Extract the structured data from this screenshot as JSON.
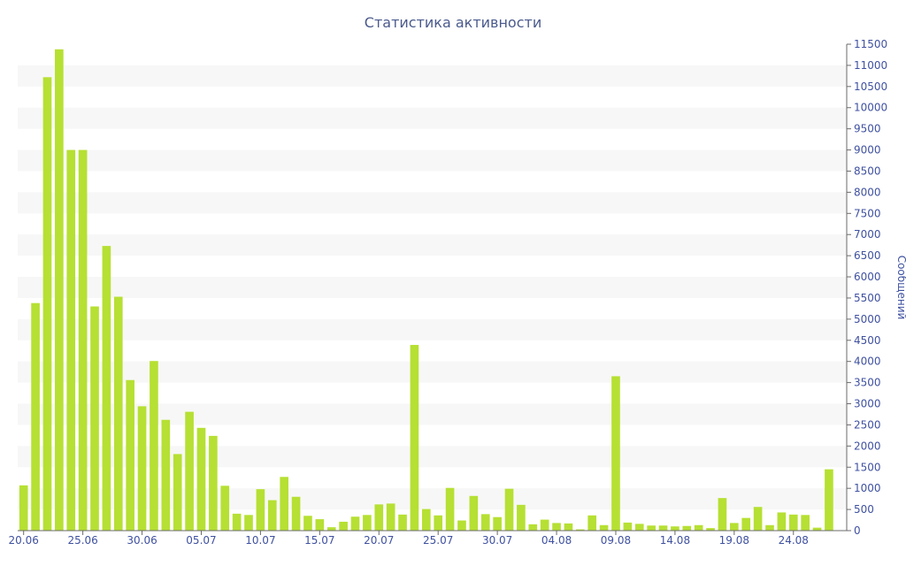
{
  "chart_data": {
    "type": "bar",
    "title": "Статистика активности",
    "ylabel": "Сообщений",
    "xlabel": "",
    "ylim": [
      0,
      11500
    ],
    "yticks": [
      0,
      500,
      1000,
      1500,
      2000,
      2500,
      3000,
      3500,
      4000,
      4500,
      5000,
      5500,
      6000,
      6500,
      7000,
      7500,
      8000,
      8500,
      9000,
      9500,
      10000,
      10500,
      11000,
      11500
    ],
    "xtick_labels": [
      "20.06",
      "25.06",
      "30.06",
      "05.07",
      "10.07",
      "15.07",
      "20.07",
      "25.07",
      "30.07",
      "04.08",
      "09.08",
      "14.08",
      "19.08",
      "24.08"
    ],
    "y_axis_position": "right",
    "grid": "alternating horizontal bands",
    "colors": {
      "bar": "#b6e033",
      "text": "#3f51a0",
      "title": "#4a5a8c",
      "band": "#f7f7f7"
    },
    "x": [
      "20.06",
      "21.06",
      "22.06",
      "23.06",
      "24.06",
      "25.06",
      "26.06",
      "27.06",
      "28.06",
      "29.06",
      "30.06",
      "01.07",
      "02.07",
      "03.07",
      "04.07",
      "05.07",
      "06.07",
      "07.07",
      "08.07",
      "09.07",
      "10.07",
      "11.07",
      "12.07",
      "13.07",
      "14.07",
      "15.07",
      "16.07",
      "17.07",
      "18.07",
      "19.07",
      "20.07",
      "21.07",
      "22.07",
      "23.07",
      "24.07",
      "25.07",
      "26.07",
      "27.07",
      "28.07",
      "29.07",
      "30.07",
      "31.07",
      "01.08",
      "02.08",
      "03.08",
      "04.08",
      "05.08",
      "06.08",
      "07.08",
      "08.08",
      "09.08",
      "10.08",
      "11.08",
      "12.08",
      "13.08",
      "14.08",
      "15.08",
      "16.08",
      "17.08",
      "18.08",
      "19.08",
      "20.08",
      "21.08",
      "22.08",
      "23.08",
      "24.08",
      "25.08",
      "26.08",
      "27.08",
      "28.08"
    ],
    "values": [
      1070,
      5380,
      10720,
      11380,
      9000,
      9000,
      5300,
      6730,
      5530,
      3560,
      2940,
      4010,
      2620,
      1810,
      2810,
      2430,
      2240,
      1060,
      400,
      370,
      980,
      720,
      1270,
      800,
      350,
      270,
      80,
      210,
      330,
      370,
      620,
      640,
      380,
      4390,
      510,
      360,
      1010,
      240,
      820,
      390,
      320,
      990,
      610,
      150,
      260,
      180,
      170,
      30,
      360,
      130,
      3650,
      190,
      160,
      120,
      120,
      100,
      110,
      130,
      60,
      770,
      180,
      300,
      560,
      130,
      430,
      380,
      370,
      70,
      1450,
      0
    ]
  }
}
